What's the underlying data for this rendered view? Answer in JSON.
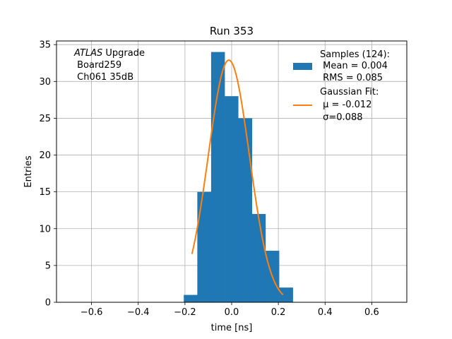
{
  "chart_data": {
    "type": "bar",
    "title": "Run 353",
    "xlabel": "time [ns]",
    "ylabel": "Entries",
    "xlim": [
      -0.75,
      0.75
    ],
    "ylim": [
      0,
      35.5
    ],
    "xticks": [
      -0.6,
      -0.4,
      -0.2,
      0.0,
      0.2,
      0.4,
      0.6
    ],
    "xtick_labels": [
      "−0.6",
      "−0.4",
      "−0.2",
      "0.0",
      "0.2",
      "0.4",
      "0.6"
    ],
    "yticks": [
      0,
      5,
      10,
      15,
      20,
      25,
      30,
      35
    ],
    "ytick_labels": [
      "0",
      "5",
      "10",
      "15",
      "20",
      "25",
      "30",
      "35"
    ],
    "grid": true,
    "legend_position": "top-right",
    "annotation": {
      "lines": [
        {
          "italic": "ATLAS",
          "text": " Upgrade"
        },
        {
          "italic": "",
          "text": " Board259"
        },
        {
          "italic": "",
          "text": " Ch061 35dB"
        }
      ]
    },
    "series": [
      {
        "type": "histogram",
        "color": "#1f77b4",
        "legend_lines": [
          "Samples (124):",
          " Mean = 0.004",
          " RMS = 0.085"
        ],
        "bin_edges": [
          -0.205,
          -0.147,
          -0.088,
          -0.03,
          0.028,
          0.087,
          0.145,
          0.203,
          0.262
        ],
        "counts": [
          1,
          15,
          34,
          28,
          25,
          12,
          7,
          2
        ]
      },
      {
        "type": "line",
        "color": "#ff7f0e",
        "legend_lines": [
          "Gaussian Fit:",
          " μ = -0.012",
          " σ=0.088"
        ],
        "function": "gaussian",
        "amplitude": 32.9,
        "mu": -0.012,
        "sigma": 0.088,
        "x_range": [
          -0.17,
          0.22
        ]
      }
    ]
  }
}
